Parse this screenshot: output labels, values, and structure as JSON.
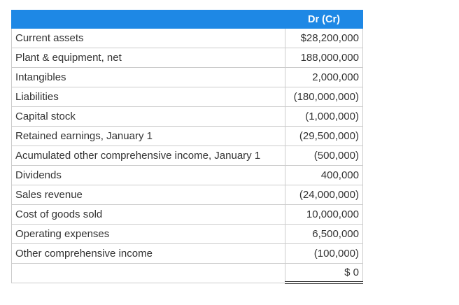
{
  "table": {
    "header": {
      "label": "",
      "value": "Dr (Cr)"
    },
    "rows": [
      {
        "label": "Current assets",
        "value": "$28,200,000"
      },
      {
        "label": "Plant & equipment, net",
        "value": "188,000,000"
      },
      {
        "label": "Intangibles",
        "value": "2,000,000"
      },
      {
        "label": "Liabilities",
        "value": "(180,000,000)"
      },
      {
        "label": "Capital stock",
        "value": "(1,000,000)"
      },
      {
        "label": "Retained earnings, January 1",
        "value": "(29,500,000)"
      },
      {
        "label": "Acumulated other comprehensive income, January 1",
        "value": "(500,000)"
      },
      {
        "label": "Dividends",
        "value": "400,000"
      },
      {
        "label": "Sales revenue",
        "value": "(24,000,000)"
      },
      {
        "label": "Cost of goods sold",
        "value": "10,000,000"
      },
      {
        "label": "Operating expenses",
        "value": "6,500,000"
      },
      {
        "label": "Other comprehensive income",
        "value": "(100,000)"
      }
    ],
    "total": {
      "label": "",
      "value": "$ 0"
    },
    "colors": {
      "header_bg": "#1e88e5",
      "header_text": "#ffffff",
      "border": "#cccccc"
    }
  }
}
